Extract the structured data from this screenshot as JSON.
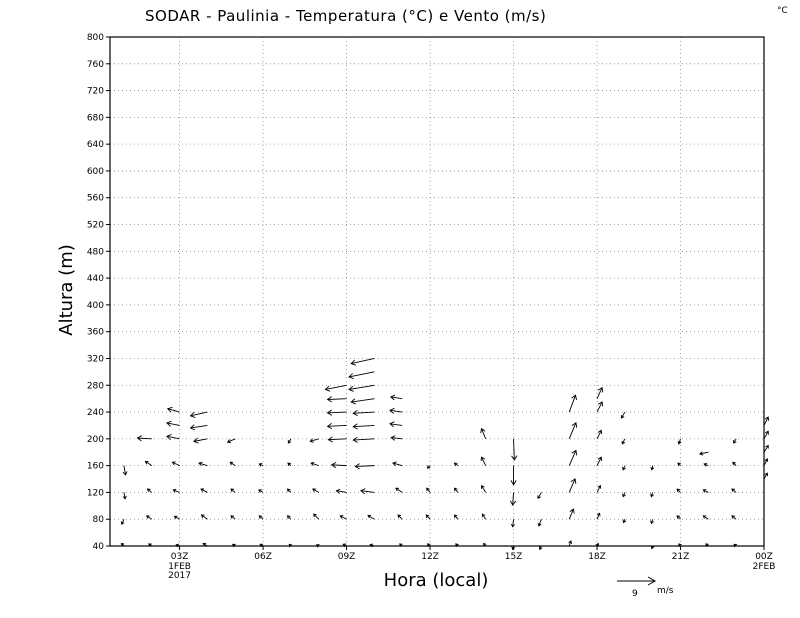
{
  "chart_data": {
    "type": "vector-field",
    "title": "SODAR - Paulinia - Temperatura (°C) e Vento (m/s)",
    "corner_unit": "°C",
    "xlabel": "Hora (local)",
    "ylabel": "Altura (m)",
    "ylim": [
      40,
      800
    ],
    "yticks": [
      40,
      80,
      120,
      160,
      200,
      240,
      280,
      320,
      360,
      400,
      440,
      480,
      520,
      560,
      600,
      640,
      680,
      720,
      760,
      800
    ],
    "xlim": [
      0.5,
      24
    ],
    "xticks": [
      {
        "x": 3,
        "label": "03Z",
        "sub": [
          "1FEB",
          "2017"
        ]
      },
      {
        "x": 6,
        "label": "06Z",
        "sub": []
      },
      {
        "x": 9,
        "label": "09Z",
        "sub": []
      },
      {
        "x": 12,
        "label": "12Z",
        "sub": []
      },
      {
        "x": 15,
        "label": "15Z",
        "sub": []
      },
      {
        "x": 18,
        "label": "18Z",
        "sub": []
      },
      {
        "x": 21,
        "label": "21Z",
        "sub": []
      },
      {
        "x": 24,
        "label": "00Z",
        "sub": [
          "2FEB"
        ]
      }
    ],
    "grid": true,
    "reference_vector": {
      "speed": 9,
      "label": "9",
      "unit": "m/s"
    },
    "wind_profiles": [
      {
        "hour": 1,
        "vectors": [
          [
            160,
            0.4,
            -2.2
          ],
          [
            120,
            0.3,
            -1.5
          ],
          [
            80,
            -0.5,
            -1.2
          ],
          [
            40,
            -0.6,
            0.6
          ]
        ]
      },
      {
        "hour": 2,
        "vectors": [
          [
            200,
            -3.4,
            0.2
          ],
          [
            160,
            -1.5,
            1.0
          ],
          [
            120,
            -1.0,
            0.8
          ],
          [
            80,
            -1.2,
            0.8
          ],
          [
            40,
            -0.7,
            0.5
          ]
        ]
      },
      {
        "hour": 3,
        "vectors": [
          [
            240,
            -2.8,
            0.8
          ],
          [
            220,
            -3.0,
            0.6
          ],
          [
            200,
            -3.0,
            0.6
          ],
          [
            160,
            -1.7,
            0.8
          ],
          [
            120,
            -1.5,
            0.6
          ],
          [
            80,
            -1.2,
            0.7
          ],
          [
            40,
            -0.8,
            0.3
          ]
        ]
      },
      {
        "hour": 4,
        "vectors": [
          [
            240,
            -4.0,
            -0.9
          ],
          [
            220,
            -4.0,
            -0.6
          ],
          [
            200,
            -3.2,
            -0.6
          ],
          [
            160,
            -2.0,
            0.6
          ],
          [
            120,
            -1.5,
            0.8
          ],
          [
            80,
            -1.4,
            1.0
          ],
          [
            40,
            -1.0,
            0.6
          ]
        ]
      },
      {
        "hour": 5,
        "vectors": [
          [
            200,
            -1.8,
            -0.8
          ],
          [
            160,
            -1.2,
            0.8
          ],
          [
            120,
            -1.0,
            0.8
          ],
          [
            80,
            -1.0,
            0.8
          ],
          [
            40,
            -0.6,
            0.4
          ]
        ]
      },
      {
        "hour": 6,
        "vectors": [
          [
            160,
            -0.9,
            0.4
          ],
          [
            120,
            -1.0,
            0.6
          ],
          [
            80,
            -0.9,
            0.8
          ],
          [
            40,
            -0.7,
            0.4
          ]
        ]
      },
      {
        "hour": 7,
        "vectors": [
          [
            200,
            -0.6,
            -1.0
          ],
          [
            160,
            -0.7,
            0.6
          ],
          [
            120,
            -0.8,
            0.8
          ],
          [
            80,
            -0.8,
            0.8
          ],
          [
            40,
            -0.4,
            0.4
          ]
        ]
      },
      {
        "hour": 8,
        "vectors": [
          [
            200,
            -2.0,
            -0.6
          ],
          [
            160,
            -1.8,
            0.6
          ],
          [
            120,
            -1.4,
            0.8
          ],
          [
            80,
            -1.2,
            1.2
          ],
          [
            40,
            -0.5,
            0.3
          ]
        ]
      },
      {
        "hour": 9,
        "vectors": [
          [
            280,
            -5.0,
            -1.0
          ],
          [
            260,
            -4.5,
            -0.2
          ],
          [
            240,
            -4.5,
            -0.2
          ],
          [
            220,
            -4.5,
            -0.2
          ],
          [
            200,
            -4.3,
            -0.2
          ],
          [
            160,
            -3.5,
            0.2
          ],
          [
            120,
            -2.4,
            0.4
          ],
          [
            80,
            -1.5,
            0.8
          ],
          [
            40,
            -0.8,
            0.4
          ]
        ]
      },
      {
        "hour": 10,
        "vectors": [
          [
            320,
            -5.5,
            -1.2
          ],
          [
            300,
            -6.0,
            -1.2
          ],
          [
            280,
            -6.0,
            -1.0
          ],
          [
            260,
            -5.5,
            -0.8
          ],
          [
            240,
            -5.0,
            -0.3
          ],
          [
            220,
            -5.0,
            -0.3
          ],
          [
            200,
            -5.0,
            -0.3
          ],
          [
            160,
            -4.5,
            -0.2
          ],
          [
            120,
            -3.2,
            0.4
          ],
          [
            80,
            -1.5,
            0.9
          ],
          [
            40,
            -1.0,
            0.3
          ]
        ]
      },
      {
        "hour": 11,
        "vectors": [
          [
            260,
            -2.7,
            0.4
          ],
          [
            240,
            -2.9,
            0.4
          ],
          [
            220,
            -2.9,
            0.4
          ],
          [
            200,
            -2.6,
            0.3
          ],
          [
            160,
            -2.2,
            0.6
          ],
          [
            120,
            -1.5,
            1.0
          ],
          [
            80,
            -1.0,
            1.0
          ],
          [
            40,
            -0.6,
            0.5
          ]
        ]
      },
      {
        "hour": 12,
        "vectors": [
          [
            160,
            -0.6,
            -0.6
          ],
          [
            120,
            -0.8,
            1.0
          ],
          [
            80,
            -0.9,
            1.0
          ],
          [
            40,
            -0.6,
            0.5
          ]
        ]
      },
      {
        "hour": 13,
        "vectors": [
          [
            160,
            -0.8,
            0.6
          ],
          [
            120,
            -0.8,
            1.0
          ],
          [
            80,
            -0.8,
            1.0
          ],
          [
            40,
            -0.5,
            0.5
          ]
        ]
      },
      {
        "hour": 14,
        "vectors": [
          [
            200,
            -1.0,
            2.4
          ],
          [
            160,
            -1.0,
            2.0
          ],
          [
            120,
            -1.0,
            1.6
          ],
          [
            80,
            -0.8,
            1.2
          ],
          [
            40,
            -0.5,
            0.6
          ]
        ]
      },
      {
        "hour": 15,
        "vectors": [
          [
            200,
            0.2,
            -5.0
          ],
          [
            160,
            0.0,
            -4.5
          ],
          [
            120,
            -0.2,
            -3.0
          ],
          [
            80,
            -0.2,
            -1.8
          ],
          [
            40,
            -0.2,
            -0.8
          ]
        ]
      },
      {
        "hour": 16,
        "vectors": [
          [
            120,
            -0.8,
            -1.4
          ],
          [
            80,
            -0.6,
            -1.6
          ],
          [
            40,
            -0.4,
            -0.8
          ]
        ]
      },
      {
        "hour": 17,
        "vectors": [
          [
            240,
            1.5,
            4.0
          ],
          [
            200,
            1.6,
            3.8
          ],
          [
            160,
            1.6,
            3.6
          ],
          [
            120,
            1.4,
            3.2
          ],
          [
            80,
            1.0,
            2.4
          ],
          [
            40,
            0.4,
            1.2
          ]
        ]
      },
      {
        "hour": 18,
        "vectors": [
          [
            260,
            1.2,
            2.6
          ],
          [
            240,
            1.2,
            2.4
          ],
          [
            200,
            1.0,
            2.0
          ],
          [
            160,
            1.0,
            2.0
          ],
          [
            120,
            0.8,
            1.6
          ],
          [
            80,
            0.6,
            1.4
          ],
          [
            40,
            0.3,
            0.6
          ]
        ]
      },
      {
        "hour": 19,
        "vectors": [
          [
            240,
            -0.8,
            -1.4
          ],
          [
            200,
            -0.6,
            -1.2
          ],
          [
            160,
            -0.4,
            -1.0
          ],
          [
            120,
            -0.4,
            -1.0
          ],
          [
            80,
            -0.3,
            -0.8
          ]
        ]
      },
      {
        "hour": 20,
        "vectors": [
          [
            160,
            -0.2,
            -1.0
          ],
          [
            120,
            -0.3,
            -1.0
          ],
          [
            80,
            -0.3,
            -1.0
          ],
          [
            40,
            -0.2,
            -0.6
          ]
        ]
      },
      {
        "hour": 21,
        "vectors": [
          [
            200,
            -0.4,
            -1.2
          ],
          [
            160,
            -0.6,
            0.6
          ],
          [
            120,
            -0.8,
            0.8
          ],
          [
            80,
            -0.8,
            0.8
          ],
          [
            40,
            -0.4,
            0.5
          ]
        ]
      },
      {
        "hour": 22,
        "vectors": [
          [
            180,
            -2.0,
            -0.4
          ],
          [
            160,
            -1.0,
            0.4
          ],
          [
            120,
            -1.2,
            0.6
          ],
          [
            80,
            -1.2,
            0.8
          ],
          [
            40,
            -0.6,
            0.5
          ]
        ]
      },
      {
        "hour": 23,
        "vectors": [
          [
            200,
            -0.6,
            -1.0
          ],
          [
            160,
            -0.8,
            0.8
          ],
          [
            120,
            -1.0,
            0.8
          ],
          [
            80,
            -1.0,
            0.8
          ],
          [
            40,
            -0.5,
            0.4
          ]
        ]
      },
      {
        "hour": 24,
        "vectors": [
          [
            220,
            1.0,
            2.0
          ],
          [
            200,
            1.0,
            1.8
          ],
          [
            180,
            1.0,
            1.6
          ],
          [
            160,
            0.8,
            1.6
          ],
          [
            140,
            0.8,
            1.4
          ]
        ]
      }
    ]
  }
}
